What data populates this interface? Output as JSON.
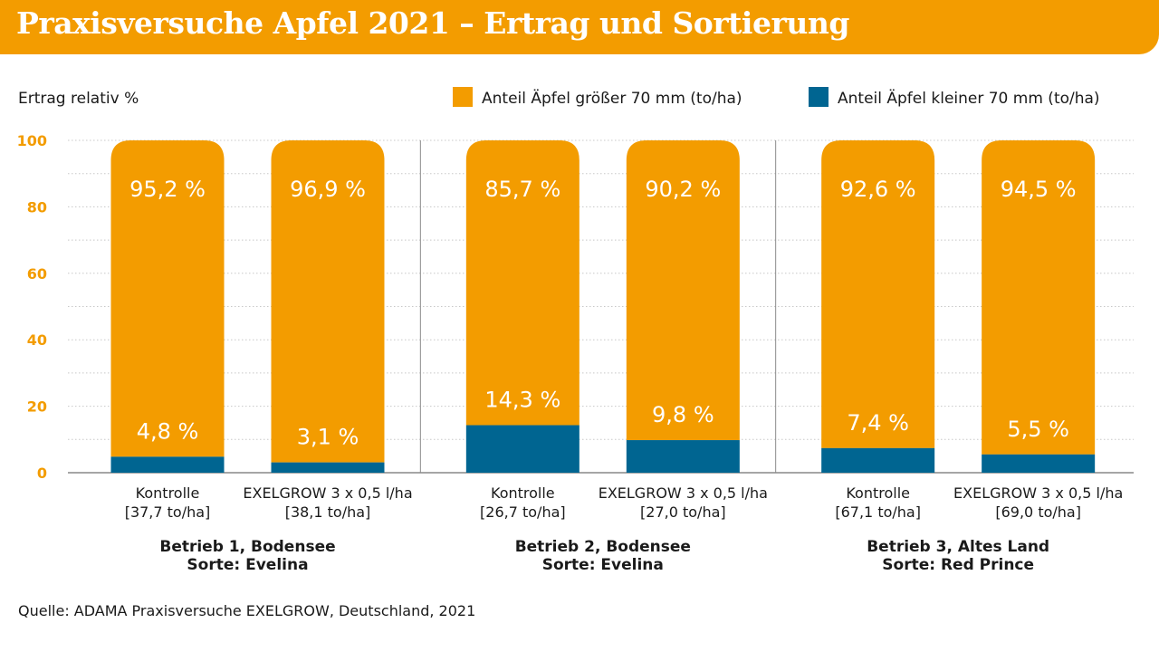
{
  "title": "Praxisversuche Apfel 2021 – Ertrag und Sortierung",
  "source": "Quelle: ADAMA Praxisversuche EXELGROW, Deutschland, 2021",
  "colors": {
    "title_bg": "#f39c00",
    "large": "#f39c00",
    "small": "#006591",
    "tick": "#f39c00"
  },
  "chart_data": {
    "type": "bar",
    "stacked": true,
    "ylabel": "Ertrag relativ %",
    "ylim": [
      0,
      100
    ],
    "yticks": [
      0,
      20,
      40,
      60,
      80,
      100
    ],
    "grid": true,
    "legend_position": "top-right",
    "categories": [
      {
        "name": "Kontrolle",
        "sub": "[37,7 to/ha]"
      },
      {
        "name": "EXELGROW 3 x 0,5 l/ha",
        "sub": "[38,1 to/ha]"
      },
      {
        "name": "Kontrolle",
        "sub": "[26,7 to/ha]"
      },
      {
        "name": "EXELGROW 3 x 0,5 l/ha",
        "sub": "[27,0 to/ha]"
      },
      {
        "name": "Kontrolle",
        "sub": "[67,1 to/ha]"
      },
      {
        "name": "EXELGROW 3 x 0,5 l/ha",
        "sub": "[69,0 to/ha]"
      }
    ],
    "groups": [
      {
        "line1": "Betrieb 1, Bodensee",
        "line2": "Sorte: Evelina"
      },
      {
        "line1": "Betrieb 2, Bodensee",
        "line2": "Sorte: Evelina"
      },
      {
        "line1": "Betrieb 3, Altes Land",
        "line2": "Sorte: Red Prince"
      }
    ],
    "series": [
      {
        "name": "Anteil Äpfel kleiner 70 mm (to/ha)",
        "values": [
          4.8,
          3.1,
          14.3,
          9.8,
          7.4,
          5.5
        ],
        "labels": [
          "4,8 %",
          "3,1 %",
          "14,3 %",
          "9,8 %",
          "7,4 %",
          "5,5 %"
        ]
      },
      {
        "name": "Anteil Äpfel größer 70 mm (to/ha)",
        "values": [
          95.2,
          96.9,
          85.7,
          90.2,
          92.6,
          94.5
        ],
        "labels": [
          "95,2 %",
          "96,9 %",
          "85,7 %",
          "90,2 %",
          "92,6 %",
          "94,5 %"
        ]
      }
    ]
  }
}
